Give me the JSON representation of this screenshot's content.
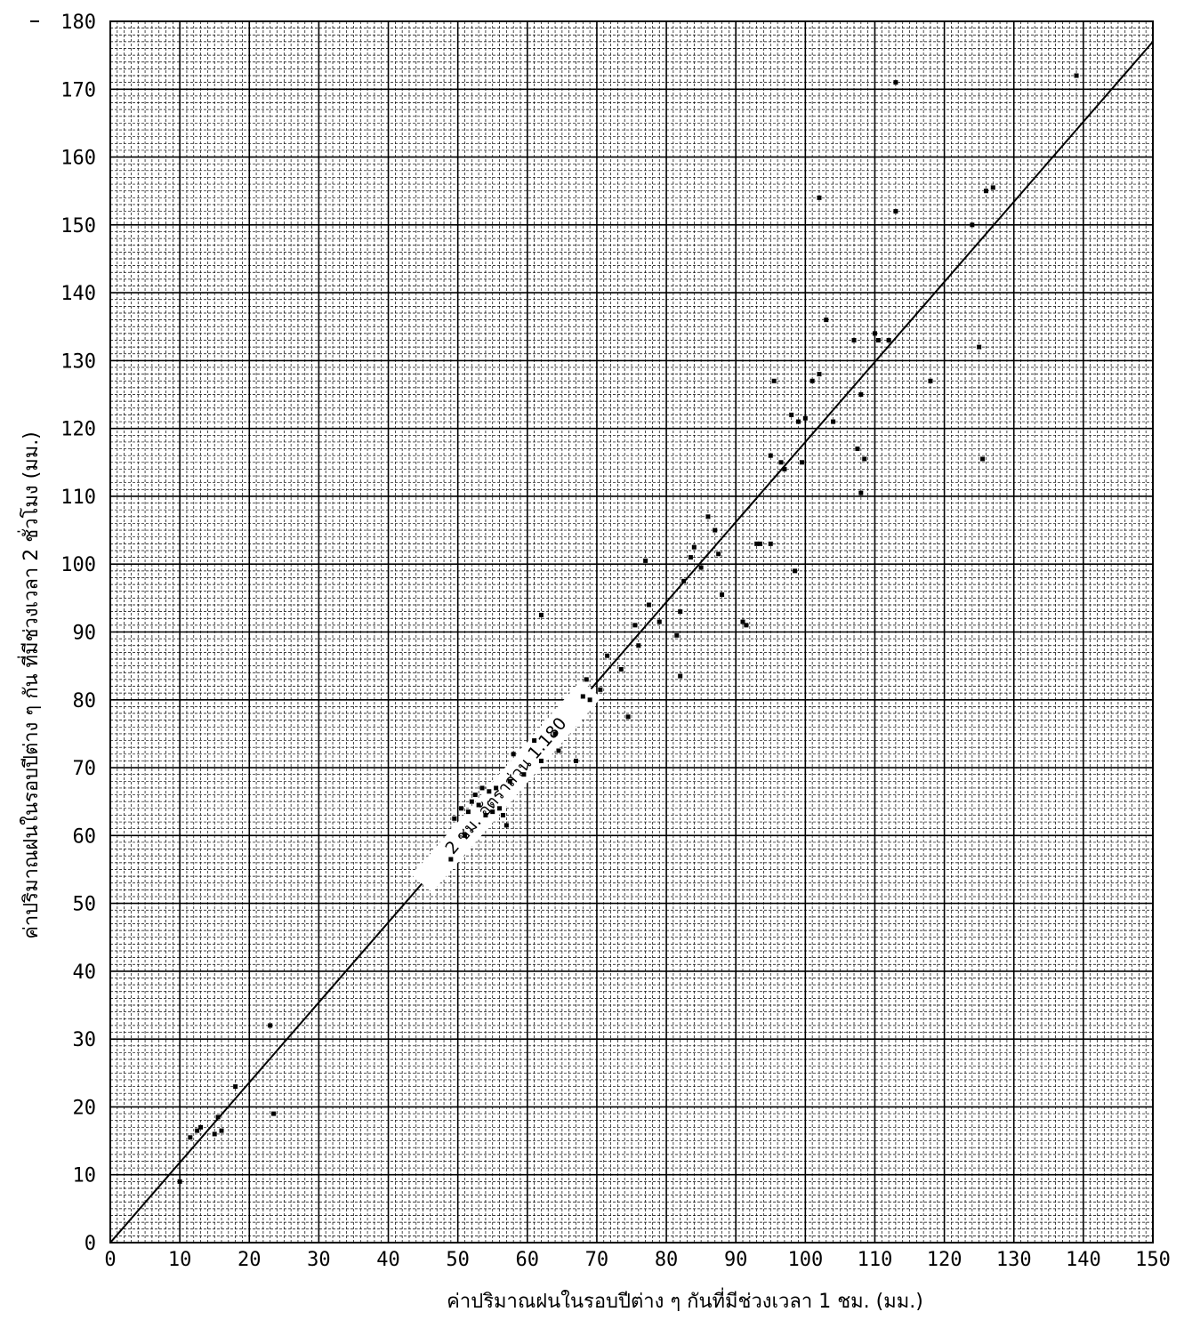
{
  "chart_data": {
    "type": "scatter",
    "title": "",
    "xlabel": "ค่าปริมาณฝนในรอบปีต่าง ๆ กันที่มีช่วงเวลา 1 ชม. (มม.)",
    "ylabel": "ค่าปริมาณฝนในรอบปีต่าง ๆ กัน ที่มีช่วงเวลา 2 ชั่วโมง (มม.)",
    "xlim": [
      0,
      150
    ],
    "ylim": [
      0,
      180
    ],
    "x_ticks": [
      0,
      10,
      20,
      30,
      40,
      50,
      60,
      70,
      80,
      90,
      100,
      110,
      120,
      130,
      140,
      150
    ],
    "y_ticks": [
      0,
      10,
      20,
      30,
      40,
      50,
      60,
      70,
      80,
      90,
      100,
      110,
      120,
      130,
      140,
      150,
      160,
      170,
      180
    ],
    "grid": true,
    "reference_line": {
      "label": "2 ชม. อัตราส่วน 1.180",
      "slope": 1.18,
      "intercept": 0
    },
    "points": [
      [
        10,
        9
      ],
      [
        11.5,
        15.5
      ],
      [
        12.5,
        16.5
      ],
      [
        13,
        17
      ],
      [
        15,
        16
      ],
      [
        16,
        16.5
      ],
      [
        15.5,
        18.5
      ],
      [
        18,
        23
      ],
      [
        23,
        32
      ],
      [
        23.5,
        19
      ],
      [
        49,
        56.5
      ],
      [
        49.5,
        62.5
      ],
      [
        50.5,
        64
      ],
      [
        51,
        60
      ],
      [
        51.5,
        63.5
      ],
      [
        52,
        65
      ],
      [
        52.5,
        66
      ],
      [
        53,
        64.5
      ],
      [
        53.5,
        67
      ],
      [
        54,
        63
      ],
      [
        54.5,
        66.5
      ],
      [
        55,
        63.5
      ],
      [
        55.5,
        67
      ],
      [
        56,
        64
      ],
      [
        56.5,
        63
      ],
      [
        57,
        61.5
      ],
      [
        57.5,
        68
      ],
      [
        58,
        72
      ],
      [
        59.5,
        69
      ],
      [
        61,
        74
      ],
      [
        62,
        92.5
      ],
      [
        62,
        71
      ],
      [
        64,
        75
      ],
      [
        64.5,
        72.5
      ],
      [
        67,
        71
      ],
      [
        68,
        80.5
      ],
      [
        68.5,
        83
      ],
      [
        69,
        80
      ],
      [
        70.5,
        81.5
      ],
      [
        71.5,
        86.5
      ],
      [
        73.5,
        84.5
      ],
      [
        74.5,
        77.5
      ],
      [
        75.5,
        91
      ],
      [
        76,
        88
      ],
      [
        77,
        100.5
      ],
      [
        77.5,
        94
      ],
      [
        79,
        91.5
      ],
      [
        81.5,
        89.5
      ],
      [
        82,
        83.5
      ],
      [
        82,
        93
      ],
      [
        82.5,
        97.5
      ],
      [
        83.5,
        101
      ],
      [
        84,
        102.5
      ],
      [
        85,
        99.5
      ],
      [
        86,
        107
      ],
      [
        87,
        105
      ],
      [
        87.5,
        101.5
      ],
      [
        88,
        95.5
      ],
      [
        91,
        91.5
      ],
      [
        91.5,
        91
      ],
      [
        93,
        103
      ],
      [
        93.5,
        103
      ],
      [
        95,
        103
      ],
      [
        95,
        116
      ],
      [
        95.5,
        127
      ],
      [
        96.5,
        115
      ],
      [
        97,
        114
      ],
      [
        98,
        122
      ],
      [
        98.5,
        99
      ],
      [
        99,
        121
      ],
      [
        99.5,
        115
      ],
      [
        100,
        121.5
      ],
      [
        101,
        127
      ],
      [
        102,
        128
      ],
      [
        102,
        154
      ],
      [
        103,
        136
      ],
      [
        104,
        121
      ],
      [
        107,
        133
      ],
      [
        107.5,
        117
      ],
      [
        108,
        125
      ],
      [
        108,
        110.5
      ],
      [
        108.5,
        115.5
      ],
      [
        110,
        134
      ],
      [
        110.5,
        133
      ],
      [
        112,
        133
      ],
      [
        113,
        171
      ],
      [
        113,
        152
      ],
      [
        118,
        127
      ],
      [
        124,
        150
      ],
      [
        125,
        132
      ],
      [
        126,
        155
      ],
      [
        127,
        155.5
      ],
      [
        125.5,
        115.5
      ],
      [
        139,
        172
      ]
    ]
  }
}
